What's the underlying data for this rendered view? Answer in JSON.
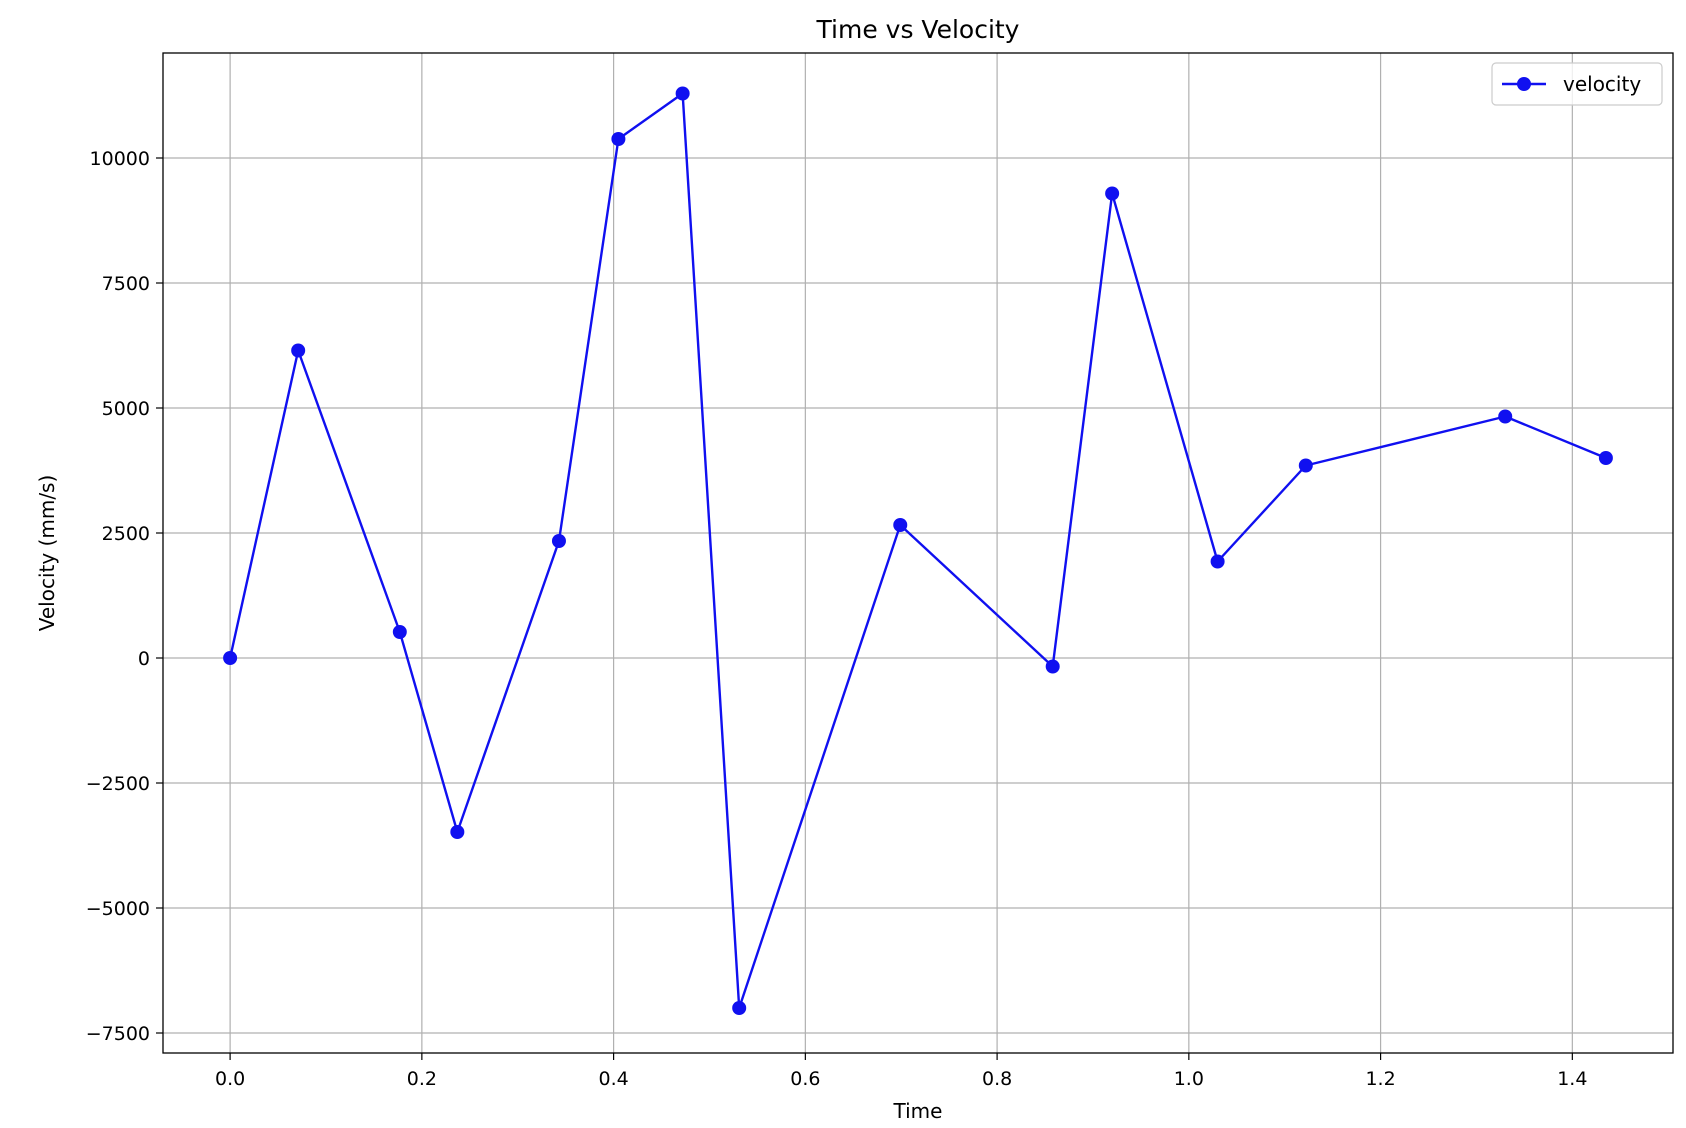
{
  "chart_data": {
    "type": "line",
    "title": "Time vs Velocity",
    "xlabel": "Time",
    "ylabel": "Velocity (mm/s)",
    "xlim": [
      -0.07,
      1.505
    ],
    "ylim": [
      -7900,
      12100
    ],
    "x_ticks": [
      0.0,
      0.2,
      0.4,
      0.6,
      0.8,
      1.0,
      1.2,
      1.4
    ],
    "x_tick_labels": [
      "0.0",
      "0.2",
      "0.4",
      "0.6",
      "0.8",
      "1.0",
      "1.2",
      "1.4"
    ],
    "y_ticks": [
      -7500,
      -5000,
      -2500,
      0,
      2500,
      5000,
      7500,
      10000
    ],
    "y_tick_labels": [
      "−7500",
      "−5000",
      "−2500",
      "0",
      "2500",
      "5000",
      "7500",
      "10000"
    ],
    "grid": true,
    "legend": "top-right",
    "series": [
      {
        "name": "velocity",
        "color": "#1010f0",
        "marker": "circle",
        "x": [
          0.0,
          0.071,
          0.177,
          0.237,
          0.343,
          0.405,
          0.472,
          0.531,
          0.699,
          0.858,
          0.92,
          1.03,
          1.122,
          1.33,
          1.435
        ],
        "y": [
          0,
          6150,
          520,
          -3480,
          2340,
          10380,
          11290,
          -7000,
          2660,
          -170,
          9290,
          1930,
          3850,
          4830,
          4000
        ]
      }
    ]
  }
}
